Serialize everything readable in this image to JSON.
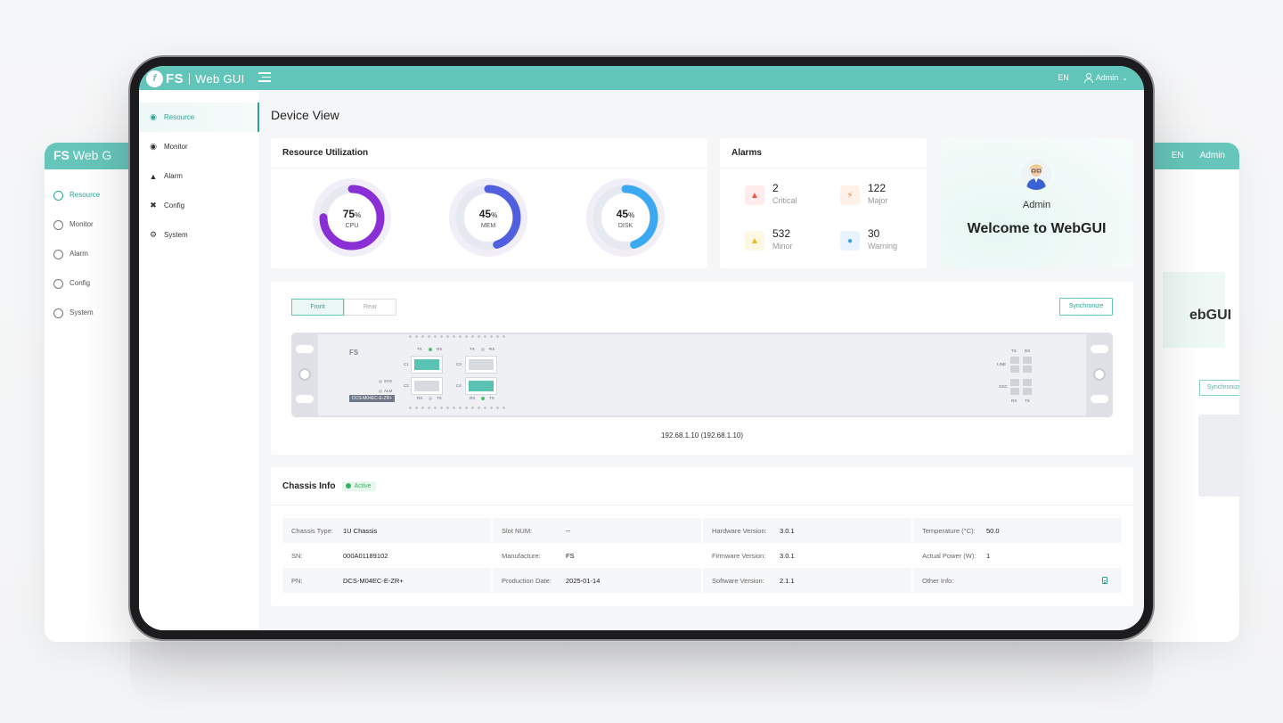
{
  "ghost": {
    "logo_fs": "FS",
    "logo_text": "Web G",
    "lang": "EN",
    "admin": "Admin",
    "nav": [
      "Resource",
      "Monitor",
      "Alarm",
      "Config",
      "System"
    ],
    "welcome_fragment": "ebGUI",
    "sync": "Synchronize"
  },
  "header": {
    "logo_fs": "FS",
    "logo_text": "Web GUI",
    "lang": "EN",
    "user": "Admin"
  },
  "sidebar": {
    "items": [
      {
        "label": "Resource",
        "icon": "globe-icon",
        "active": true
      },
      {
        "label": "Monitor",
        "icon": "monitor-icon",
        "active": false
      },
      {
        "label": "Alarm",
        "icon": "alarm-icon",
        "active": false
      },
      {
        "label": "Config",
        "icon": "tools-icon",
        "active": false
      },
      {
        "label": "System",
        "icon": "gear-icon",
        "active": false
      }
    ]
  },
  "page": {
    "title": "Device View"
  },
  "resource": {
    "title": "Resource Utilization",
    "gauges": [
      {
        "value": 75,
        "unit": "%",
        "label": "CPU",
        "color": "#8a2fd6"
      },
      {
        "value": 45,
        "unit": "%",
        "label": "MEM",
        "color": "#4f5fe0"
      },
      {
        "value": 45,
        "unit": "%",
        "label": "DISK",
        "color": "#3aa9f2"
      }
    ]
  },
  "alarms": {
    "title": "Alarms",
    "items": [
      {
        "count": "2",
        "label": "Critical",
        "icon": "flame-icon",
        "color": "#f0534a",
        "bg": "#fdeceb"
      },
      {
        "count": "122",
        "label": "Major",
        "icon": "lightning-icon",
        "color": "#f5843d",
        "bg": "#fef1e7"
      },
      {
        "count": "532",
        "label": "Minor",
        "icon": "siren-icon",
        "color": "#f2b416",
        "bg": "#fef7e2"
      },
      {
        "count": "30",
        "label": "Warning",
        "icon": "bell-icon",
        "color": "#3aa0f2",
        "bg": "#e8f3fe"
      }
    ]
  },
  "welcome": {
    "name": "Admin",
    "message": "Welcome to WebGUI"
  },
  "device": {
    "tabs": [
      {
        "label": "Front",
        "active": true
      },
      {
        "label": "Rear",
        "active": false
      }
    ],
    "sync_label": "Synchronize",
    "chassis_logo": "FS",
    "model": "DCS-M04EC-E-ZR+",
    "leds": [
      "SYS",
      "ALM"
    ],
    "slots": [
      "C1",
      "C2",
      "C3",
      "C4"
    ],
    "tx": "TX",
    "rx": "RX",
    "line": "LINE",
    "osc": "OSC",
    "ip": "192.68.1.10 (192.68.1.10)"
  },
  "chassis_info": {
    "title": "Chassis Info",
    "status": "Active",
    "rows": [
      [
        {
          "k": "Chassis Type:",
          "v": "1U Chassis"
        },
        {
          "k": "Slot NUM:",
          "v": "--"
        },
        {
          "k": "Hardware Version:",
          "v": "3.0.1"
        },
        {
          "k": "Temperature (°C):",
          "v": "50.0"
        }
      ],
      [
        {
          "k": "SN:",
          "v": "000A01189102"
        },
        {
          "k": "Manufacture:",
          "v": "FS"
        },
        {
          "k": "Firmware Version:",
          "v": "3.0.1"
        },
        {
          "k": "Actual Power (W):",
          "v": "1"
        }
      ],
      [
        {
          "k": "PN:",
          "v": "DCS-M04EC-E-ZR+"
        },
        {
          "k": "Production Date:",
          "v": "2025-01-14"
        },
        {
          "k": "Software Version:",
          "v": "2.1.1"
        },
        {
          "k": "Other Info:",
          "v": ""
        }
      ]
    ]
  }
}
